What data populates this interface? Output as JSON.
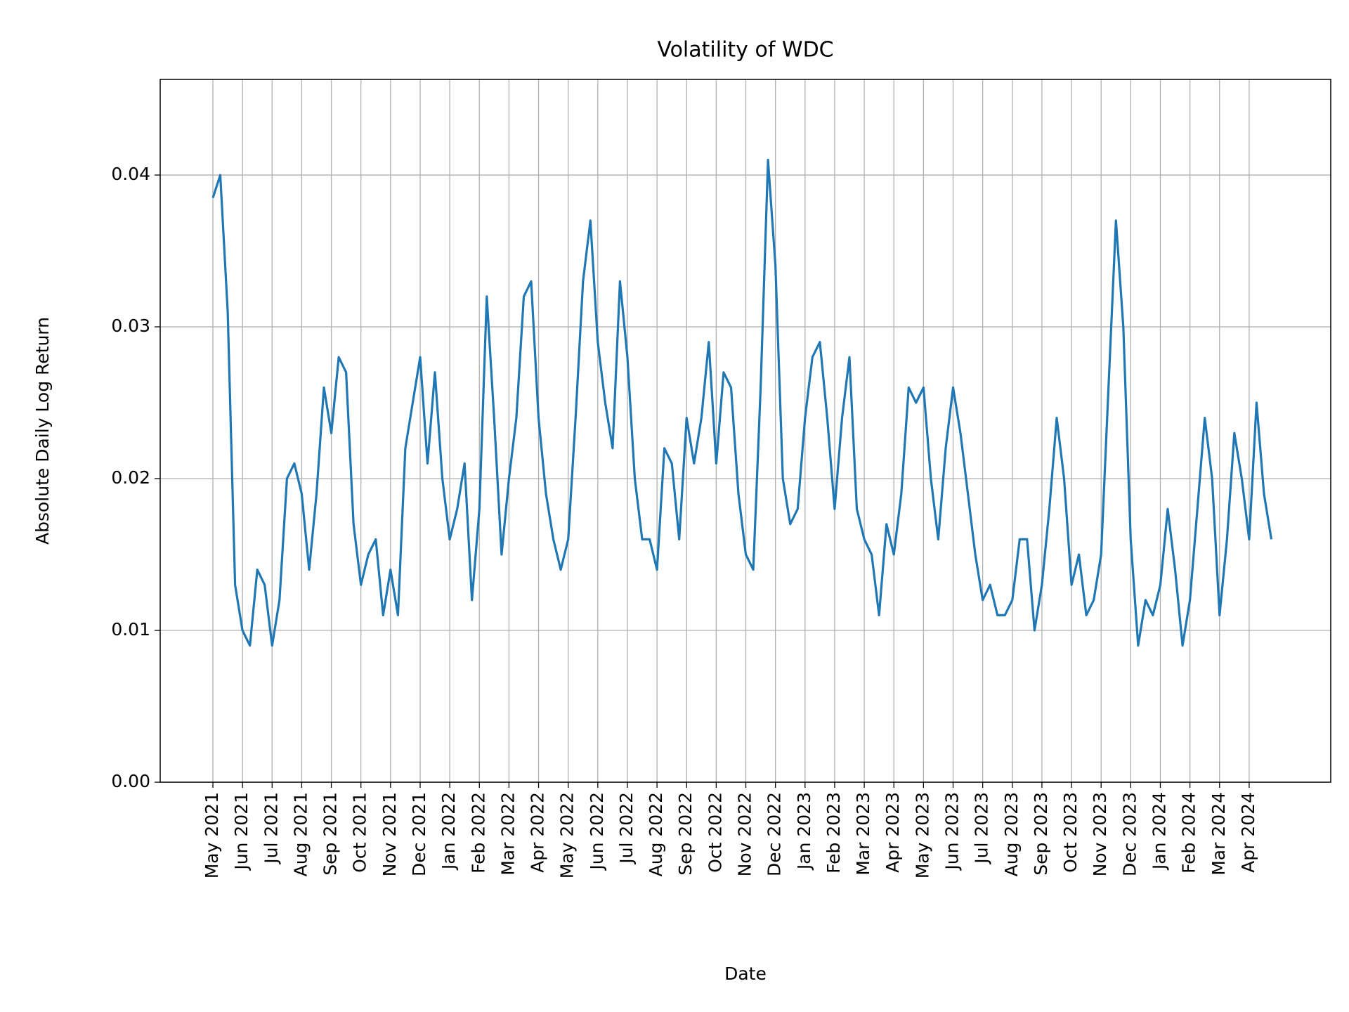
{
  "chart_data": {
    "type": "line",
    "title": "Volatility of WDC",
    "x_label": "Date",
    "y_label": "Absolute Daily Log Return",
    "color": "#1f77b4",
    "grid": true,
    "ylim": [
      0,
      0.0463
    ],
    "yticks": [
      {
        "value": 0,
        "label": "0.00"
      },
      0.01,
      0.02,
      0.03,
      0.04
    ],
    "xticks": [
      "May 2021",
      "Jun 2021",
      "Jul 2021",
      "Aug 2021",
      "Sep 2021",
      "Oct 2021",
      "Nov 2021",
      "Dec 2021",
      "Jan 2022",
      "Feb 2022",
      "Mar 2022",
      "Apr 2022",
      "May 2022",
      "Jun 2022",
      "Jul 2022",
      "Aug 2022",
      "Sep 2022",
      "Oct 2022",
      "Nov 2022",
      "Dec 2022",
      "Jan 2023",
      "Feb 2023",
      "Mar 2023",
      "Apr 2023",
      "May 2023",
      "Jun 2023",
      "Jul 2023",
      "Aug 2023",
      "Sep 2023",
      "Oct 2023",
      "Nov 2023",
      "Dec 2023",
      "Jan 2024",
      "Feb 2024",
      "Mar 2024",
      "Apr 2024"
    ],
    "x": [
      "May 2021",
      "May 2021",
      "May 2021",
      "May 2021",
      "Jun 2021",
      "Jun 2021",
      "Jun 2021",
      "Jun 2021",
      "Jul 2021",
      "Jul 2021",
      "Jul 2021",
      "Jul 2021",
      "Aug 2021",
      "Aug 2021",
      "Aug 2021",
      "Aug 2021",
      "Sep 2021",
      "Sep 2021",
      "Sep 2021",
      "Sep 2021",
      "Oct 2021",
      "Oct 2021",
      "Oct 2021",
      "Oct 2021",
      "Nov 2021",
      "Nov 2021",
      "Nov 2021",
      "Nov 2021",
      "Dec 2021",
      "Dec 2021",
      "Dec 2021",
      "Dec 2021",
      "Jan 2022",
      "Jan 2022",
      "Jan 2022",
      "Jan 2022",
      "Feb 2022",
      "Feb 2022",
      "Feb 2022",
      "Feb 2022",
      "Mar 2022",
      "Mar 2022",
      "Mar 2022",
      "Mar 2022",
      "Apr 2022",
      "Apr 2022",
      "Apr 2022",
      "Apr 2022",
      "May 2022",
      "May 2022",
      "May 2022",
      "May 2022",
      "Jun 2022",
      "Jun 2022",
      "Jun 2022",
      "Jun 2022",
      "Jul 2022",
      "Jul 2022",
      "Jul 2022",
      "Jul 2022",
      "Aug 2022",
      "Aug 2022",
      "Aug 2022",
      "Aug 2022",
      "Sep 2022",
      "Sep 2022",
      "Sep 2022",
      "Sep 2022",
      "Oct 2022",
      "Oct 2022",
      "Oct 2022",
      "Oct 2022",
      "Nov 2022",
      "Nov 2022",
      "Nov 2022",
      "Nov 2022",
      "Dec 2022",
      "Dec 2022",
      "Dec 2022",
      "Dec 2022",
      "Jan 2023",
      "Jan 2023",
      "Jan 2023",
      "Jan 2023",
      "Feb 2023",
      "Feb 2023",
      "Feb 2023",
      "Feb 2023",
      "Mar 2023",
      "Mar 2023",
      "Mar 2023",
      "Mar 2023",
      "Apr 2023",
      "Apr 2023",
      "Apr 2023",
      "Apr 2023",
      "May 2023",
      "May 2023",
      "May 2023",
      "May 2023",
      "Jun 2023",
      "Jun 2023",
      "Jun 2023",
      "Jun 2023",
      "Jul 2023",
      "Jul 2023",
      "Jul 2023",
      "Jul 2023",
      "Aug 2023",
      "Aug 2023",
      "Aug 2023",
      "Aug 2023",
      "Sep 2023",
      "Sep 2023",
      "Sep 2023",
      "Sep 2023",
      "Oct 2023",
      "Oct 2023",
      "Oct 2023",
      "Oct 2023",
      "Nov 2023",
      "Nov 2023",
      "Nov 2023",
      "Nov 2023",
      "Dec 2023",
      "Dec 2023",
      "Dec 2023",
      "Dec 2023",
      "Jan 2024",
      "Jan 2024",
      "Jan 2024",
      "Jan 2024",
      "Feb 2024",
      "Feb 2024",
      "Feb 2024",
      "Feb 2024",
      "Mar 2024",
      "Mar 2024",
      "Mar 2024",
      "Mar 2024",
      "Apr 2024",
      "Apr 2024",
      "Apr 2024",
      "Apr 2024"
    ],
    "values": [
      0.0385,
      0.04,
      0.031,
      0.013,
      0.01,
      0.009,
      0.014,
      0.013,
      0.009,
      0.012,
      0.02,
      0.021,
      0.019,
      0.014,
      0.019,
      0.026,
      0.023,
      0.028,
      0.027,
      0.017,
      0.013,
      0.015,
      0.016,
      0.011,
      0.014,
      0.011,
      0.022,
      0.025,
      0.028,
      0.021,
      0.027,
      0.02,
      0.016,
      0.018,
      0.021,
      0.012,
      0.018,
      0.032,
      0.024,
      0.015,
      0.02,
      0.024,
      0.032,
      0.033,
      0.024,
      0.019,
      0.016,
      0.014,
      0.016,
      0.024,
      0.033,
      0.037,
      0.029,
      0.025,
      0.022,
      0.033,
      0.028,
      0.02,
      0.016,
      0.016,
      0.014,
      0.022,
      0.021,
      0.016,
      0.024,
      0.021,
      0.024,
      0.029,
      0.021,
      0.027,
      0.026,
      0.019,
      0.015,
      0.014,
      0.026,
      0.041,
      0.034,
      0.02,
      0.017,
      0.018,
      0.024,
      0.028,
      0.029,
      0.024,
      0.018,
      0.024,
      0.028,
      0.018,
      0.016,
      0.015,
      0.011,
      0.017,
      0.015,
      0.019,
      0.026,
      0.025,
      0.026,
      0.02,
      0.016,
      0.022,
      0.026,
      0.023,
      0.019,
      0.015,
      0.012,
      0.013,
      0.011,
      0.011,
      0.012,
      0.016,
      0.016,
      0.01,
      0.013,
      0.018,
      0.024,
      0.02,
      0.013,
      0.015,
      0.011,
      0.012,
      0.015,
      0.026,
      0.037,
      0.03,
      0.016,
      0.009,
      0.012,
      0.011,
      0.013,
      0.018,
      0.014,
      0.009,
      0.012,
      0.018,
      0.024,
      0.02,
      0.011,
      0.016,
      0.023,
      0.02,
      0.016,
      0.025,
      0.019,
      0.016
    ]
  }
}
